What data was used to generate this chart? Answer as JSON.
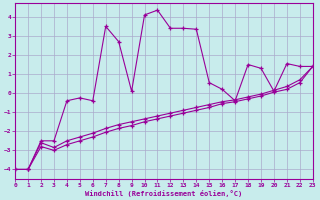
{
  "background_color": "#c8ecec",
  "grid_color": "#aaaacc",
  "line_color": "#990099",
  "xlabel": "Windchill (Refroidissement éolien,°C)",
  "xlim": [
    0,
    23
  ],
  "ylim": [
    -4.5,
    4.7
  ],
  "yticks": [
    -4,
    -3,
    -2,
    -1,
    0,
    1,
    2,
    3,
    4
  ],
  "xticks": [
    0,
    1,
    2,
    3,
    4,
    5,
    6,
    7,
    8,
    9,
    10,
    11,
    12,
    13,
    14,
    15,
    16,
    17,
    18,
    19,
    20,
    21,
    22,
    23
  ],
  "s1x": [
    0,
    1,
    2,
    3,
    4,
    5,
    6,
    7,
    8,
    9,
    10,
    11,
    12,
    13,
    14,
    15,
    16,
    17,
    18,
    19,
    20,
    21,
    22,
    23
  ],
  "s1y": [
    -4.0,
    -4.0,
    -2.5,
    -2.5,
    -0.4,
    -0.25,
    -0.4,
    3.5,
    2.7,
    0.1,
    4.1,
    4.35,
    3.4,
    3.4,
    3.35,
    0.55,
    0.2,
    -0.4,
    1.5,
    1.3,
    0.1,
    1.55,
    1.4,
    1.4
  ],
  "s2x": [
    0,
    1,
    2,
    3,
    4,
    5,
    6,
    7,
    8,
    9,
    10,
    11,
    12,
    13,
    14,
    15,
    16,
    17,
    18,
    19,
    20,
    21,
    22,
    23
  ],
  "s2y": [
    -4.0,
    -4.0,
    -2.6,
    -2.85,
    -2.5,
    -2.3,
    -2.1,
    -1.85,
    -1.65,
    -1.5,
    -1.35,
    -1.2,
    -1.05,
    -0.9,
    -0.75,
    -0.6,
    -0.45,
    -0.35,
    -0.2,
    -0.05,
    0.15,
    0.35,
    0.7,
    1.4
  ],
  "s3x": [
    0,
    1,
    2,
    3,
    4,
    5,
    6,
    7,
    8,
    9,
    10,
    11,
    12,
    13,
    14,
    15,
    16,
    17,
    18,
    19,
    20,
    21,
    22,
    23
  ],
  "s3y": [
    -4.0,
    -4.0,
    -2.8,
    -3.0,
    -2.7,
    -2.5,
    -2.3,
    -2.05,
    -1.85,
    -1.7,
    -1.5,
    -1.35,
    -1.2,
    -1.05,
    -0.9,
    -0.75,
    -0.55,
    -0.45,
    -0.3,
    -0.15,
    0.05,
    0.2,
    0.55,
    1.4
  ]
}
